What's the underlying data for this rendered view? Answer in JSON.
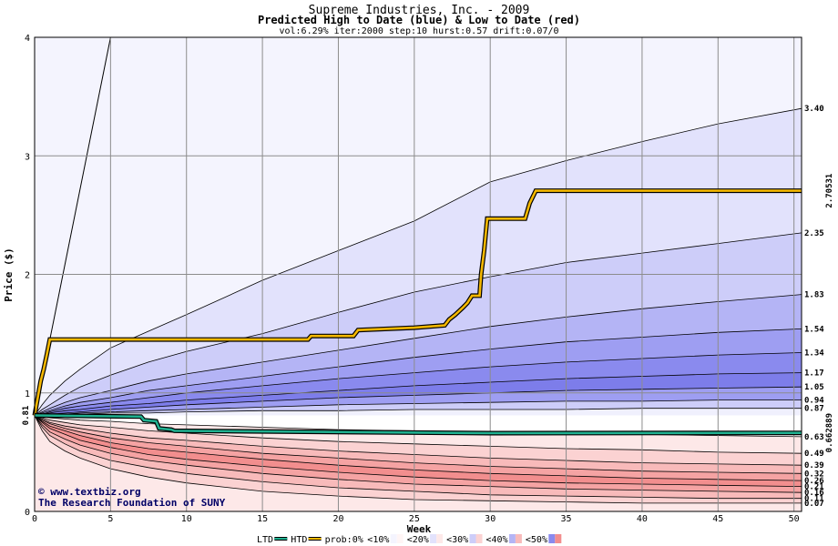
{
  "chart_data": {
    "type": "area",
    "title": "Supreme Industries, Inc. - 2009",
    "subtitle": "Predicted High to Date (blue) &  Low to Date (red)",
    "params": "vol:6.29% iter:2000 step:10 hurst:0.57 drift:0.07/0",
    "xlabel": "Week",
    "ylabel": "Price ($)",
    "xlim": [
      0,
      50.5
    ],
    "ylim": [
      0,
      4
    ],
    "xticks": [
      0,
      5,
      10,
      15,
      20,
      25,
      30,
      35,
      40,
      45,
      50
    ],
    "yticks": [
      0,
      1,
      2,
      3,
      4
    ],
    "grid": true,
    "start_price": 0.81,
    "start_price_label": "0.81",
    "week_x": [
      0,
      0.5,
      1,
      2,
      3,
      5,
      7.5,
      10,
      15,
      20,
      25,
      30,
      35,
      40,
      45,
      50.5
    ],
    "high_quantiles": [
      {
        "label": "3.40",
        "end": 3.4,
        "values": [
          0.81,
          0.9,
          0.98,
          1.1,
          1.2,
          1.38,
          1.52,
          1.66,
          1.95,
          2.2,
          2.45,
          2.78,
          2.96,
          3.12,
          3.27,
          3.4
        ]
      },
      {
        "label": "2.35",
        "end": 2.35,
        "values": [
          0.81,
          0.86,
          0.9,
          0.98,
          1.05,
          1.15,
          1.26,
          1.35,
          1.5,
          1.68,
          1.85,
          1.98,
          2.1,
          2.18,
          2.26,
          2.35
        ]
      },
      {
        "label": "1.83",
        "end": 1.83,
        "values": [
          0.81,
          0.84,
          0.87,
          0.92,
          0.96,
          1.02,
          1.1,
          1.16,
          1.26,
          1.36,
          1.46,
          1.56,
          1.64,
          1.71,
          1.77,
          1.83
        ]
      },
      {
        "label": "1.54",
        "end": 1.54,
        "values": [
          0.81,
          0.83,
          0.85,
          0.89,
          0.92,
          0.96,
          1.02,
          1.06,
          1.14,
          1.22,
          1.3,
          1.37,
          1.43,
          1.47,
          1.51,
          1.54
        ]
      },
      {
        "label": "1.34",
        "end": 1.34,
        "values": [
          0.81,
          0.82,
          0.84,
          0.87,
          0.89,
          0.92,
          0.96,
          1.0,
          1.06,
          1.12,
          1.17,
          1.22,
          1.26,
          1.29,
          1.32,
          1.34
        ]
      },
      {
        "label": "1.17",
        "end": 1.17,
        "values": [
          0.81,
          0.82,
          0.83,
          0.85,
          0.86,
          0.89,
          0.91,
          0.94,
          0.98,
          1.02,
          1.06,
          1.09,
          1.12,
          1.14,
          1.16,
          1.17
        ]
      },
      {
        "label": "1.05",
        "end": 1.05,
        "values": [
          0.81,
          0.81,
          0.82,
          0.83,
          0.84,
          0.86,
          0.88,
          0.9,
          0.93,
          0.96,
          0.98,
          1.0,
          1.02,
          1.03,
          1.04,
          1.05
        ]
      },
      {
        "label": "0.94",
        "end": 0.94,
        "values": [
          0.81,
          0.81,
          0.82,
          0.82,
          0.83,
          0.84,
          0.85,
          0.86,
          0.88,
          0.9,
          0.91,
          0.92,
          0.93,
          0.93,
          0.94,
          0.94
        ]
      },
      {
        "label": "0.87",
        "end": 0.87,
        "values": [
          0.81,
          0.81,
          0.81,
          0.82,
          0.82,
          0.83,
          0.83,
          0.84,
          0.85,
          0.85,
          0.86,
          0.86,
          0.86,
          0.87,
          0.87,
          0.87
        ]
      }
    ],
    "low_quantiles": [
      {
        "label": "0.63",
        "end": 0.63,
        "values": [
          0.81,
          0.8,
          0.79,
          0.78,
          0.77,
          0.76,
          0.74,
          0.73,
          0.71,
          0.69,
          0.68,
          0.67,
          0.66,
          0.65,
          0.64,
          0.63
        ]
      },
      {
        "label": "0.49",
        "end": 0.49,
        "values": [
          0.81,
          0.79,
          0.77,
          0.75,
          0.73,
          0.71,
          0.68,
          0.66,
          0.62,
          0.59,
          0.57,
          0.55,
          0.53,
          0.52,
          0.5,
          0.49
        ]
      },
      {
        "label": "0.39",
        "end": 0.39,
        "values": [
          0.81,
          0.78,
          0.75,
          0.72,
          0.7,
          0.66,
          0.62,
          0.6,
          0.55,
          0.51,
          0.48,
          0.45,
          0.43,
          0.41,
          0.4,
          0.39
        ]
      },
      {
        "label": "0.32",
        "end": 0.32,
        "values": [
          0.81,
          0.77,
          0.74,
          0.7,
          0.67,
          0.62,
          0.58,
          0.55,
          0.49,
          0.45,
          0.41,
          0.38,
          0.36,
          0.34,
          0.33,
          0.32
        ]
      },
      {
        "label": "0.26",
        "end": 0.26,
        "values": [
          0.81,
          0.76,
          0.72,
          0.68,
          0.64,
          0.58,
          0.53,
          0.5,
          0.44,
          0.39,
          0.35,
          0.32,
          0.3,
          0.28,
          0.27,
          0.26
        ]
      },
      {
        "label": "0.21",
        "end": 0.21,
        "values": [
          0.81,
          0.75,
          0.7,
          0.65,
          0.6,
          0.54,
          0.48,
          0.44,
          0.38,
          0.33,
          0.29,
          0.26,
          0.24,
          0.23,
          0.22,
          0.21
        ]
      },
      {
        "label": "0.16",
        "end": 0.16,
        "values": [
          0.81,
          0.73,
          0.67,
          0.61,
          0.56,
          0.49,
          0.43,
          0.39,
          0.32,
          0.27,
          0.23,
          0.21,
          0.19,
          0.18,
          0.17,
          0.16
        ]
      },
      {
        "label": "0.11",
        "end": 0.11,
        "values": [
          0.81,
          0.71,
          0.64,
          0.57,
          0.51,
          0.43,
          0.37,
          0.32,
          0.25,
          0.2,
          0.17,
          0.14,
          0.13,
          0.12,
          0.11,
          0.11
        ]
      },
      {
        "label": "0.07",
        "end": 0.07,
        "values": [
          0.81,
          0.68,
          0.59,
          0.51,
          0.45,
          0.36,
          0.29,
          0.24,
          0.17,
          0.13,
          0.1,
          0.09,
          0.08,
          0.07,
          0.07,
          0.07
        ]
      }
    ],
    "extreme_line": {
      "x": [
        0,
        5
      ],
      "y": [
        0.81,
        4.0
      ]
    },
    "htd": {
      "name": "HTD",
      "value_label": "2.70531",
      "points": [
        [
          0,
          0.81
        ],
        [
          0.4,
          1.1
        ],
        [
          0.6,
          1.2
        ],
        [
          0.8,
          1.32
        ],
        [
          1,
          1.45
        ],
        [
          18,
          1.45
        ],
        [
          18.2,
          1.48
        ],
        [
          21,
          1.48
        ],
        [
          21.3,
          1.53
        ],
        [
          25,
          1.55
        ],
        [
          27,
          1.57
        ],
        [
          27.3,
          1.62
        ],
        [
          27.7,
          1.66
        ],
        [
          28.2,
          1.72
        ],
        [
          28.5,
          1.76
        ],
        [
          28.8,
          1.82
        ],
        [
          29.3,
          1.82
        ],
        [
          29.4,
          2.0
        ],
        [
          29.6,
          2.2
        ],
        [
          29.8,
          2.47
        ],
        [
          32.3,
          2.47
        ],
        [
          32.6,
          2.6
        ],
        [
          33,
          2.70531
        ],
        [
          50.5,
          2.70531
        ]
      ]
    },
    "ltd": {
      "name": "LTD",
      "value_label": "0.662889",
      "points": [
        [
          0,
          0.81
        ],
        [
          7,
          0.8
        ],
        [
          7.2,
          0.77
        ],
        [
          8,
          0.76
        ],
        [
          8.2,
          0.7
        ],
        [
          9,
          0.69
        ],
        [
          9.2,
          0.68
        ],
        [
          30,
          0.66
        ],
        [
          50.5,
          0.662889
        ]
      ]
    },
    "colors": {
      "htd_line": "#f5b800",
      "ltd_line": "#20b090",
      "htd_label": "#a07000",
      "ltd_label": "#1a9a7a",
      "grid": "#8c8c8c",
      "high_fills": [
        "#f4f4fe",
        "#e2e2fc",
        "#cdcdf9",
        "#b4b4f5",
        "#9e9ef2",
        "#8a8aee",
        "#7d7dea",
        "#9e9ef2",
        "#cdcdf9",
        "#f0f0fd"
      ],
      "low_fills": [
        "#ffffff",
        "#fde8e8",
        "#fbd2d2",
        "#f8baba",
        "#f5a3a3",
        "#f28e8e",
        "#f5a3a3",
        "#f8baba",
        "#fbd2d2",
        "#fde8e8",
        "#fff5f5"
      ]
    },
    "legend": [
      {
        "label": "LTD",
        "kind": "line",
        "color": "#20b090"
      },
      {
        "label": "HTD",
        "kind": "line",
        "color": "#f5b800"
      },
      {
        "label": "prob:0%",
        "kind": "text"
      },
      {
        "label": "<10%",
        "kind": "swatch",
        "color": "#f4f4fe",
        "color2": "#fff5f5"
      },
      {
        "label": "<20%",
        "kind": "swatch",
        "color": "#e2e2fc",
        "color2": "#fde8e8"
      },
      {
        "label": "<30%",
        "kind": "swatch",
        "color": "#cdcdf9",
        "color2": "#fbd2d2"
      },
      {
        "label": "<40%",
        "kind": "swatch",
        "color": "#b4b4f5",
        "color2": "#f8baba"
      },
      {
        "label": "<50%",
        "kind": "swatch",
        "color": "#8a8aee",
        "color2": "#f28e8e"
      }
    ]
  },
  "credit": {
    "line1": "www.textbiz.org",
    "line2": "The Research Foundation of SUNY"
  }
}
